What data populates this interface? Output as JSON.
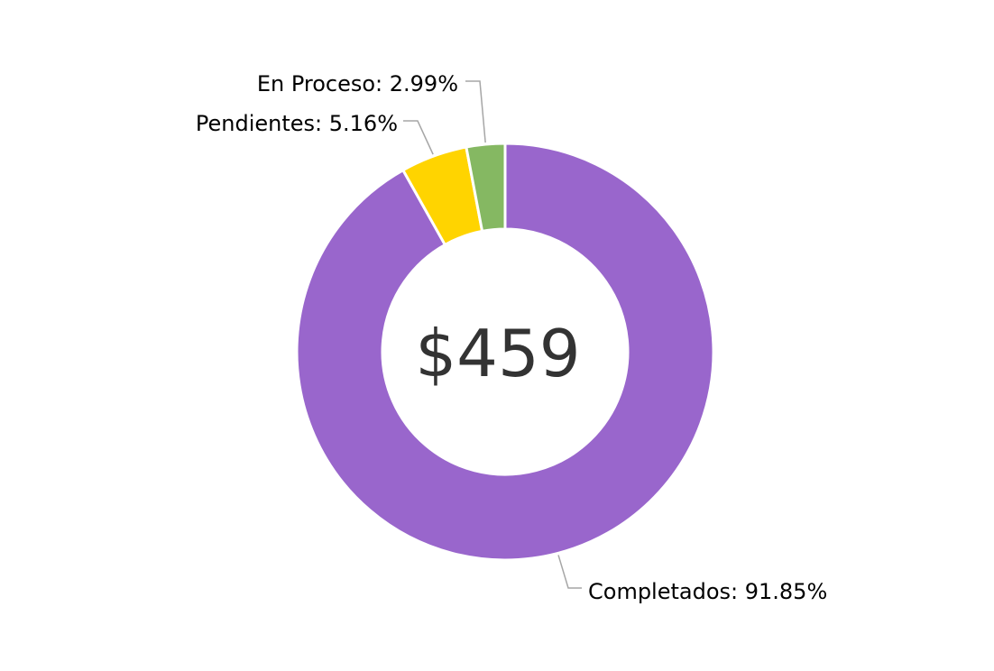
{
  "chart_data": {
    "type": "pie",
    "center_label": "$459",
    "slices": [
      {
        "name": "Completados",
        "value": 91.85,
        "label": "Completados: 91.85%",
        "color": "#9966cc"
      },
      {
        "name": "Pendientes",
        "value": 5.16,
        "label": "Pendientes: 5.16%",
        "color": "#ffd400"
      },
      {
        "name": "En Proceso",
        "value": 2.99,
        "label": "En Proceso: 2.99%",
        "color": "#85b862"
      }
    ]
  }
}
